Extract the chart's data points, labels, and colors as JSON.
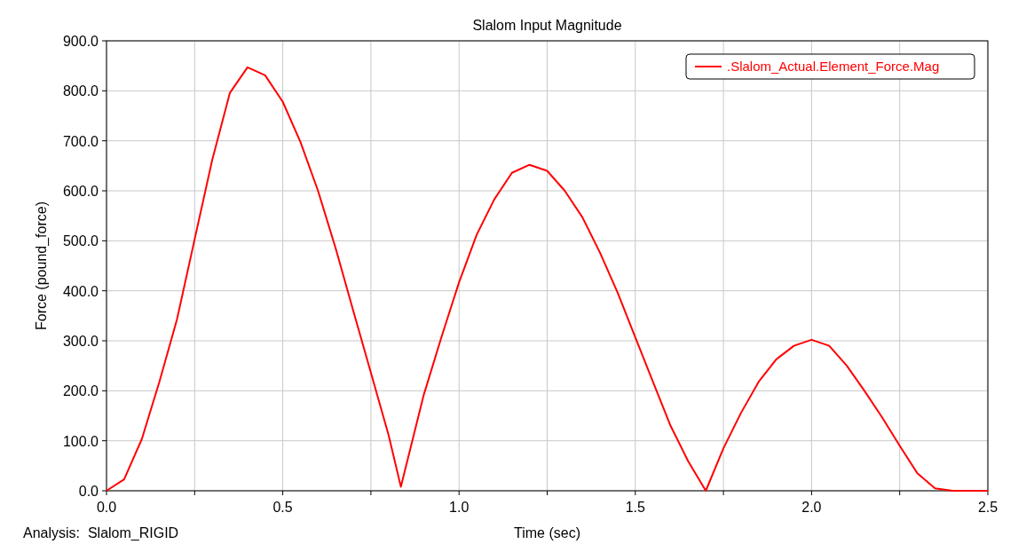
{
  "chart_data": {
    "type": "line",
    "title": "Slalom Input Magnitude",
    "xlabel": "Time (sec)",
    "ylabel": "Force (pound_force)",
    "annotations": [
      "Analysis:  Slalom_RIGID"
    ],
    "x": [
      0,
      0.05,
      0.1,
      0.15,
      0.2,
      0.25,
      0.3,
      0.35,
      0.4,
      0.45,
      0.5,
      0.55,
      0.6,
      0.65,
      0.7,
      0.75,
      0.8,
      0.835,
      0.9,
      0.95,
      1.0,
      1.05,
      1.1,
      1.15,
      1.2,
      1.25,
      1.3,
      1.35,
      1.4,
      1.45,
      1.5,
      1.55,
      1.6,
      1.65,
      1.7,
      1.75,
      1.8,
      1.85,
      1.9,
      1.95,
      2.0,
      2.05,
      2.1,
      2.15,
      2.2,
      2.25,
      2.3,
      2.35,
      2.4,
      2.5
    ],
    "series": [
      {
        "name": ".Slalom_Actual.Element_Force.Mag",
        "color": "#ff0000",
        "values": [
          0,
          23,
          103,
          218,
          343,
          503,
          662,
          796,
          847,
          831,
          778,
          698,
          600,
          485,
          360,
          236,
          112,
          8,
          192,
          307,
          417,
          512,
          583,
          636,
          652,
          640,
          600,
          547,
          476,
          396,
          307,
          218,
          130,
          59,
          0,
          85,
          156,
          218,
          263,
          290,
          302,
          290,
          250,
          200,
          147,
          90,
          35,
          5,
          0,
          0
        ]
      }
    ],
    "xlim": [
      0,
      2.5
    ],
    "ylim": [
      0,
      900
    ],
    "xticks": [
      {
        "value": 0,
        "label": "0.0"
      },
      {
        "value": 0.25,
        "label": null
      },
      {
        "value": 0.5,
        "label": "0.5"
      },
      {
        "value": 0.75,
        "label": null
      },
      {
        "value": 1,
        "label": "1.0"
      },
      {
        "value": 1.25,
        "label": null
      },
      {
        "value": 1.5,
        "label": "1.5"
      },
      {
        "value": 1.75,
        "label": null
      },
      {
        "value": 2,
        "label": "2.0"
      },
      {
        "value": 2.25,
        "label": null
      },
      {
        "value": 2.5,
        "label": "2.5"
      }
    ],
    "yticks": [
      {
        "value": 0,
        "label": "0.0"
      },
      {
        "value": 100,
        "label": "100.0"
      },
      {
        "value": 200,
        "label": "200.0"
      },
      {
        "value": 300,
        "label": "300.0"
      },
      {
        "value": 400,
        "label": "400.0"
      },
      {
        "value": 500,
        "label": "500.0"
      },
      {
        "value": 600,
        "label": "600.0"
      },
      {
        "value": 700,
        "label": "700.0"
      },
      {
        "value": 800,
        "label": "800.0"
      },
      {
        "value": 900,
        "label": "900.0"
      }
    ],
    "grid": true,
    "legend": "top right",
    "marker": "none",
    "line_style": "solid"
  }
}
